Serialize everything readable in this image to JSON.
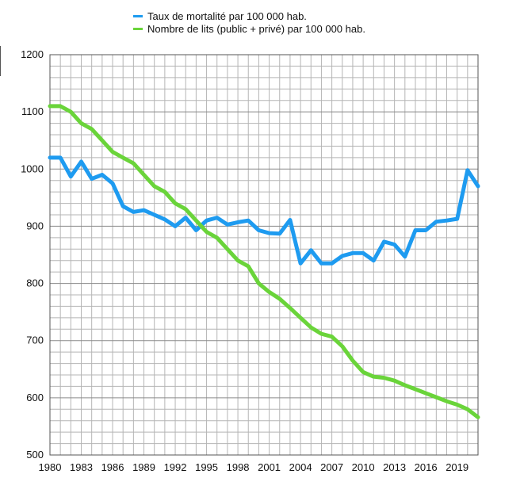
{
  "chart_data": {
    "type": "line",
    "title": "",
    "xlabel": "",
    "ylabel": "",
    "xlim": [
      1980,
      2021
    ],
    "ylim": [
      500,
      1200
    ],
    "grid": true,
    "legend_position": "top-center",
    "x_ticks": [
      "1980",
      "1983",
      "1986",
      "1989",
      "1992",
      "1995",
      "1998",
      "2001",
      "2004",
      "2007",
      "2010",
      "2013",
      "2016",
      "2019"
    ],
    "y_ticks": [
      "500",
      "600",
      "700",
      "800",
      "900",
      "1000",
      "1100",
      "1200"
    ],
    "x": [
      1980,
      1981,
      1982,
      1983,
      1984,
      1985,
      1986,
      1987,
      1988,
      1989,
      1990,
      1991,
      1992,
      1993,
      1994,
      1995,
      1996,
      1997,
      1998,
      1999,
      2000,
      2001,
      2002,
      2003,
      2004,
      2005,
      2006,
      2007,
      2008,
      2009,
      2010,
      2011,
      2012,
      2013,
      2014,
      2015,
      2016,
      2017,
      2018,
      2019,
      2020,
      2021
    ],
    "series": [
      {
        "name": "Taux de mortalité par 100 000 hab.",
        "color": "#1e9bf0",
        "values": [
          1020,
          1020,
          987,
          1013,
          983,
          990,
          975,
          935,
          925,
          928,
          920,
          912,
          900,
          915,
          893,
          910,
          915,
          903,
          907,
          910,
          893,
          888,
          887,
          911,
          835,
          858,
          835,
          835,
          848,
          853,
          853,
          840,
          873,
          868,
          847,
          893,
          893,
          908,
          910,
          913,
          998,
          970
        ]
      },
      {
        "name": "Nombre de lits (public + privé) par 100 000 hab.",
        "color": "#6ad43a",
        "values": [
          1110,
          1110,
          1100,
          1080,
          1070,
          1050,
          1030,
          1020,
          1010,
          990,
          970,
          960,
          940,
          930,
          910,
          890,
          880,
          860,
          840,
          830,
          800,
          785,
          773,
          757,
          740,
          723,
          712,
          707,
          690,
          665,
          645,
          637,
          635,
          630,
          622,
          615,
          608,
          601,
          594,
          588,
          580,
          566
        ]
      }
    ]
  }
}
